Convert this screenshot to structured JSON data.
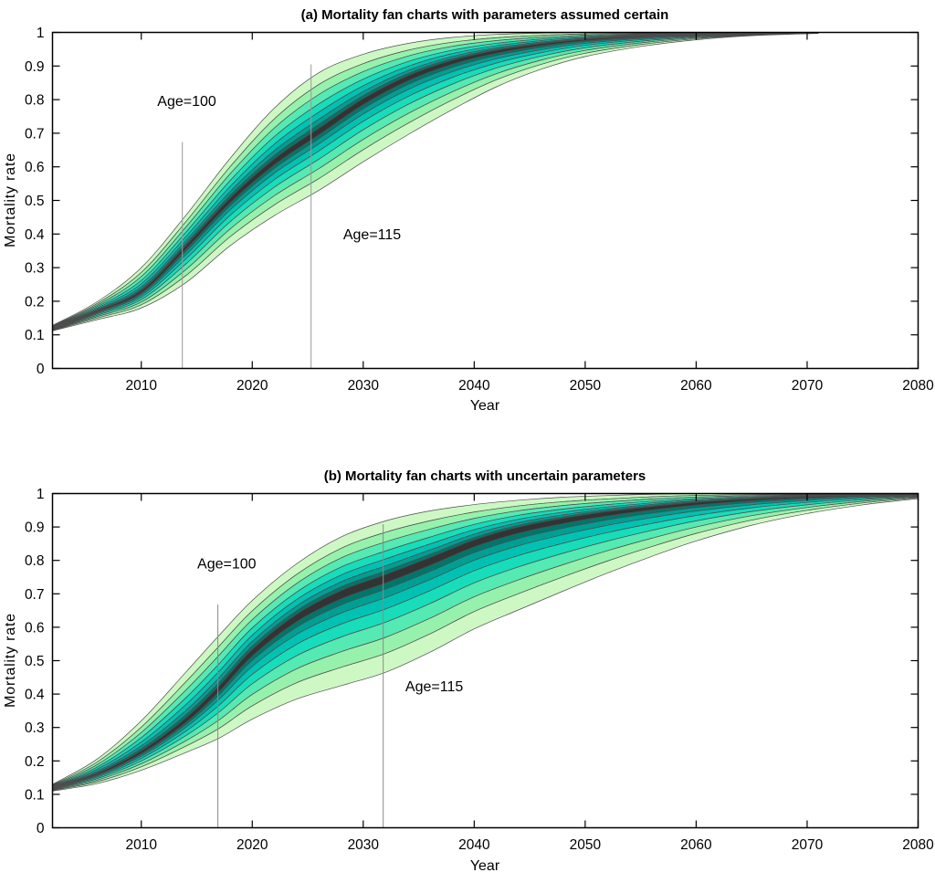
{
  "figure": {
    "background": "#ffffff",
    "axis_color": "#000000",
    "text_color": "#000000"
  },
  "chart_data": [
    {
      "type": "area",
      "subtype": "fan-chart",
      "panel": "a",
      "title": "(a) Mortality fan charts with parameters assumed certain",
      "xlabel": "Year",
      "ylabel": "Mortality rate",
      "xlim": [
        2002,
        2080
      ],
      "ylim": [
        0,
        1
      ],
      "x_ticks": [
        2010,
        2020,
        2030,
        2040,
        2050,
        2060,
        2070,
        2080
      ],
      "y_ticks": [
        0,
        0.1,
        0.2,
        0.3,
        0.4,
        0.5,
        0.6,
        0.7,
        0.8,
        0.9,
        1
      ],
      "grid": false,
      "legend": null,
      "annotation_line_color": "#9a9a9a",
      "annotations": [
        {
          "label": "Age=100",
          "line_x": 2013.7,
          "line_y_top": 0.674,
          "text_x": 2014.1,
          "text_y": 0.796
        },
        {
          "label": "Age=115",
          "line_x": 2025.3,
          "line_y_top": 0.905,
          "text_x": 2030.8,
          "text_y": 0.4
        }
      ],
      "fan": {
        "x": [
          2002,
          2006,
          2010,
          2014,
          2018,
          2022,
          2026,
          2030,
          2034,
          2038,
          2042,
          2046,
          2050,
          2055,
          2060,
          2065,
          2071
        ],
        "median": [
          0.12,
          0.17,
          0.228,
          0.36,
          0.5,
          0.615,
          0.705,
          0.795,
          0.865,
          0.913,
          0.944,
          0.964,
          0.978,
          0.988,
          0.994,
          0.997,
          0.999
        ],
        "upper": [
          0.128,
          0.198,
          0.3,
          0.455,
          0.625,
          0.775,
          0.88,
          0.935,
          0.967,
          0.985,
          0.994,
          0.998,
          1.0,
          1.0,
          1.0,
          1.0,
          1.0
        ],
        "lower": [
          0.112,
          0.145,
          0.18,
          0.255,
          0.365,
          0.455,
          0.53,
          0.615,
          0.695,
          0.77,
          0.838,
          0.89,
          0.928,
          0.958,
          0.978,
          0.99,
          0.997
        ],
        "level_fractions": [
          1.0,
          0.8,
          0.63,
          0.47,
          0.33,
          0.21,
          0.12,
          0.055
        ],
        "band_colors_outer_to_inner": [
          "#cdf8c4",
          "#96f1ac",
          "#55e9b3",
          "#17ddba",
          "#00c2b3",
          "#009e93",
          "#00766b"
        ],
        "center_color": "#333333",
        "contour_color": "#4d4d4d"
      }
    },
    {
      "type": "area",
      "subtype": "fan-chart",
      "panel": "b",
      "title": "(b) Mortality fan charts with uncertain parameters",
      "xlabel": "Year",
      "ylabel": "Mortality rate",
      "xlim": [
        2002,
        2080
      ],
      "ylim": [
        0,
        1
      ],
      "x_ticks": [
        2010,
        2020,
        2030,
        2040,
        2050,
        2060,
        2070,
        2080
      ],
      "y_ticks": [
        0,
        0.1,
        0.2,
        0.3,
        0.4,
        0.5,
        0.6,
        0.7,
        0.8,
        0.9,
        1
      ],
      "grid": false,
      "legend": null,
      "annotation_line_color": "#8a8a8a",
      "annotations": [
        {
          "label": "Age=100",
          "line_x": 2016.9,
          "line_y_top": 0.668,
          "text_x": 2017.7,
          "text_y": 0.791
        },
        {
          "label": "Age=115",
          "line_x": 2031.8,
          "line_y_top": 0.908,
          "text_x": 2036.4,
          "text_y": 0.424
        }
      ],
      "fan": {
        "x": [
          2002,
          2006,
          2010,
          2014,
          2017,
          2020,
          2024,
          2028,
          2032,
          2036,
          2040,
          2044,
          2048,
          2052,
          2056,
          2060,
          2065,
          2070,
          2075,
          2080
        ],
        "median": [
          0.12,
          0.16,
          0.225,
          0.32,
          0.415,
          0.525,
          0.63,
          0.7,
          0.748,
          0.8,
          0.855,
          0.895,
          0.922,
          0.943,
          0.959,
          0.972,
          0.983,
          0.99,
          0.995,
          0.998
        ],
        "upper": [
          0.13,
          0.205,
          0.32,
          0.465,
          0.575,
          0.68,
          0.79,
          0.87,
          0.918,
          0.948,
          0.967,
          0.98,
          0.989,
          0.994,
          0.998,
          1.0,
          1.0,
          1.0,
          1.0,
          1.0
        ],
        "lower": [
          0.11,
          0.132,
          0.172,
          0.225,
          0.268,
          0.325,
          0.385,
          0.425,
          0.465,
          0.525,
          0.595,
          0.652,
          0.708,
          0.762,
          0.812,
          0.858,
          0.905,
          0.94,
          0.966,
          0.985
        ],
        "level_fractions": [
          1.0,
          0.8,
          0.63,
          0.47,
          0.33,
          0.21,
          0.12,
          0.055
        ],
        "band_colors_outer_to_inner": [
          "#cdf8c4",
          "#96f1ac",
          "#55e9b3",
          "#17ddba",
          "#00c2b3",
          "#009e93",
          "#00766b"
        ],
        "center_color": "#333333",
        "contour_color": "#4d4d4d"
      }
    }
  ]
}
